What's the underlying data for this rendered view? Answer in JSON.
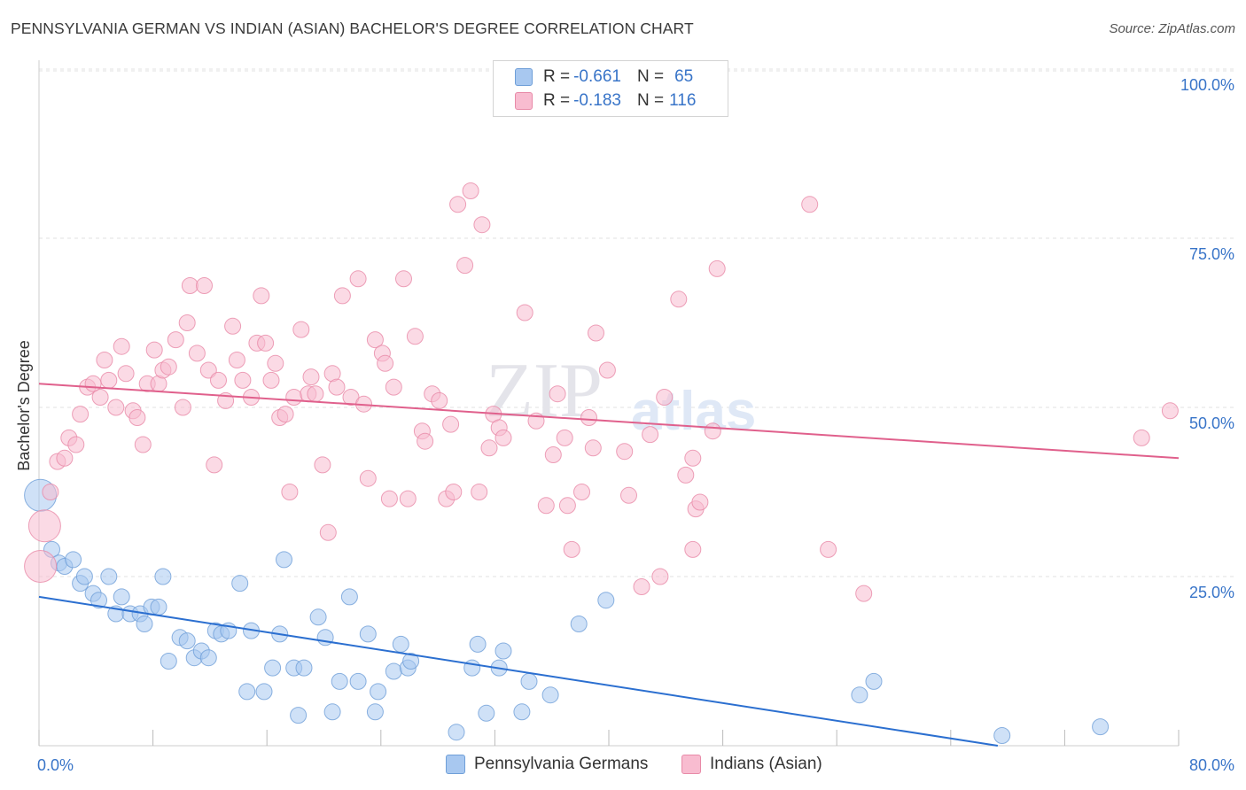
{
  "header": {
    "title": "PENNSYLVANIA GERMAN VS INDIAN (ASIAN) BACHELOR'S DEGREE CORRELATION CHART",
    "source": "Source: ZipAtlas.com"
  },
  "watermark": {
    "zip": "ZIP",
    "atlas": "atlas"
  },
  "legend": {
    "rows": [
      {
        "r_label": "R =",
        "r_value": "-0.661",
        "n_label": "N =",
        "n_value": "65",
        "color": "#a8c8f0",
        "border": "#6f9fd8"
      },
      {
        "r_label": "R =",
        "r_value": "-0.183",
        "n_label": "N =",
        "n_value": "116",
        "color": "#f8bcd0",
        "border": "#e88aa8"
      }
    ]
  },
  "bottom_legend": {
    "items": [
      {
        "label": "Pennsylvania Germans",
        "color": "#a8c8f0",
        "border": "#6f9fd8"
      },
      {
        "label": "Indians (Asian)",
        "color": "#f8bcd0",
        "border": "#e88aa8"
      }
    ]
  },
  "chart_data": {
    "type": "scatter",
    "title": "PENNSYLVANIA GERMAN VS INDIAN (ASIAN) BACHELOR'S DEGREE CORRELATION CHART",
    "xlabel": "",
    "ylabel": "Bachelor's Degree",
    "xlim": [
      0,
      80
    ],
    "ylim": [
      0,
      100
    ],
    "x_tick_labels": [
      "0.0%",
      "80.0%"
    ],
    "y_ticks": [
      25,
      50,
      75,
      100
    ],
    "y_tick_labels": [
      "25.0%",
      "50.0%",
      "75.0%",
      "100.0%"
    ],
    "grid": true,
    "legend_position": "top-center",
    "series": [
      {
        "name": "Pennsylvania Germans",
        "color": "#a8c8f0",
        "stroke": "#6f9fd8",
        "line_color": "#2b6fd0",
        "trend": {
          "x0": 0,
          "y0": 22.0,
          "x1": 67.3,
          "y1": 0
        },
        "points": [
          [
            0.1,
            37.0
          ],
          [
            0.9,
            29.0
          ],
          [
            1.4,
            27.0
          ],
          [
            1.8,
            26.5
          ],
          [
            2.4,
            27.5
          ],
          [
            2.9,
            24.0
          ],
          [
            3.2,
            25.0
          ],
          [
            3.8,
            22.5
          ],
          [
            4.2,
            21.5
          ],
          [
            4.9,
            25.0
          ],
          [
            5.4,
            19.5
          ],
          [
            5.8,
            22.0
          ],
          [
            6.4,
            19.5
          ],
          [
            7.1,
            19.5
          ],
          [
            7.4,
            18.0
          ],
          [
            7.9,
            20.5
          ],
          [
            8.4,
            20.5
          ],
          [
            8.7,
            25.0
          ],
          [
            9.1,
            12.5
          ],
          [
            9.9,
            16.0
          ],
          [
            10.4,
            15.5
          ],
          [
            10.9,
            13.0
          ],
          [
            11.4,
            14.0
          ],
          [
            11.9,
            13.0
          ],
          [
            12.4,
            17.0
          ],
          [
            12.8,
            16.5
          ],
          [
            13.3,
            17.0
          ],
          [
            14.1,
            24.0
          ],
          [
            14.6,
            8.0
          ],
          [
            14.9,
            17.0
          ],
          [
            15.8,
            8.0
          ],
          [
            16.4,
            11.5
          ],
          [
            16.9,
            16.5
          ],
          [
            17.2,
            27.5
          ],
          [
            17.9,
            11.5
          ],
          [
            18.2,
            4.5
          ],
          [
            18.6,
            11.5
          ],
          [
            19.6,
            19.0
          ],
          [
            20.1,
            16.0
          ],
          [
            20.6,
            5.0
          ],
          [
            21.1,
            9.5
          ],
          [
            21.8,
            22.0
          ],
          [
            22.4,
            9.5
          ],
          [
            23.1,
            16.5
          ],
          [
            23.6,
            5.0
          ],
          [
            23.8,
            8.0
          ],
          [
            24.9,
            11.0
          ],
          [
            25.4,
            15.0
          ],
          [
            25.9,
            11.5
          ],
          [
            26.1,
            12.5
          ],
          [
            29.3,
            2.0
          ],
          [
            30.4,
            11.5
          ],
          [
            30.8,
            15.0
          ],
          [
            31.4,
            4.8
          ],
          [
            32.3,
            11.5
          ],
          [
            32.6,
            14.0
          ],
          [
            33.9,
            5.0
          ],
          [
            34.4,
            9.5
          ],
          [
            35.9,
            7.5
          ],
          [
            37.9,
            18.0
          ],
          [
            39.8,
            21.5
          ],
          [
            57.6,
            7.5
          ],
          [
            58.6,
            9.5
          ],
          [
            67.6,
            1.5
          ],
          [
            74.5,
            2.8
          ]
        ]
      },
      {
        "name": "Indians (Asian)",
        "color": "#f8bcd0",
        "stroke": "#e88aa8",
        "line_color": "#e0608c",
        "trend": {
          "x0": 0,
          "y0": 53.5,
          "x1": 80,
          "y1": 42.5
        },
        "points": [
          [
            0.1,
            26.5
          ],
          [
            0.4,
            32.5
          ],
          [
            0.8,
            37.5
          ],
          [
            1.3,
            42.0
          ],
          [
            1.8,
            42.5
          ],
          [
            2.1,
            45.5
          ],
          [
            2.6,
            44.5
          ],
          [
            2.9,
            49.0
          ],
          [
            3.4,
            53.0
          ],
          [
            3.8,
            53.5
          ],
          [
            4.3,
            51.5
          ],
          [
            4.6,
            57.0
          ],
          [
            4.9,
            54.0
          ],
          [
            5.4,
            50.0
          ],
          [
            5.8,
            59.0
          ],
          [
            6.1,
            55.0
          ],
          [
            6.6,
            49.5
          ],
          [
            6.9,
            48.5
          ],
          [
            7.3,
            44.5
          ],
          [
            7.6,
            53.5
          ],
          [
            8.1,
            58.5
          ],
          [
            8.4,
            53.5
          ],
          [
            8.7,
            55.5
          ],
          [
            9.1,
            56.0
          ],
          [
            9.6,
            60.0
          ],
          [
            10.1,
            50.0
          ],
          [
            10.4,
            62.5
          ],
          [
            10.6,
            68.0
          ],
          [
            11.1,
            58.0
          ],
          [
            11.6,
            68.0
          ],
          [
            11.9,
            55.5
          ],
          [
            12.3,
            41.5
          ],
          [
            12.6,
            54.0
          ],
          [
            13.1,
            51.0
          ],
          [
            13.6,
            62.0
          ],
          [
            13.9,
            57.0
          ],
          [
            14.3,
            54.0
          ],
          [
            14.9,
            51.5
          ],
          [
            15.3,
            59.5
          ],
          [
            15.6,
            66.5
          ],
          [
            15.9,
            59.5
          ],
          [
            16.3,
            54.0
          ],
          [
            16.6,
            56.5
          ],
          [
            16.9,
            48.5
          ],
          [
            17.3,
            49.0
          ],
          [
            17.6,
            37.5
          ],
          [
            17.9,
            51.5
          ],
          [
            18.4,
            61.5
          ],
          [
            18.9,
            52.0
          ],
          [
            19.1,
            54.5
          ],
          [
            19.4,
            52.0
          ],
          [
            19.9,
            41.5
          ],
          [
            20.3,
            31.5
          ],
          [
            20.6,
            55.0
          ],
          [
            20.9,
            53.0
          ],
          [
            21.3,
            66.5
          ],
          [
            21.9,
            51.5
          ],
          [
            22.4,
            69.0
          ],
          [
            22.8,
            50.5
          ],
          [
            23.1,
            39.5
          ],
          [
            23.6,
            60.0
          ],
          [
            24.1,
            58.0
          ],
          [
            24.3,
            56.5
          ],
          [
            24.6,
            36.5
          ],
          [
            24.9,
            53.0
          ],
          [
            25.6,
            69.0
          ],
          [
            25.9,
            36.5
          ],
          [
            26.4,
            60.5
          ],
          [
            26.9,
            46.5
          ],
          [
            27.1,
            45.0
          ],
          [
            27.6,
            52.0
          ],
          [
            28.1,
            51.0
          ],
          [
            28.6,
            36.5
          ],
          [
            28.9,
            47.5
          ],
          [
            29.1,
            37.5
          ],
          [
            29.4,
            80.0
          ],
          [
            29.9,
            71.0
          ],
          [
            30.3,
            82.0
          ],
          [
            30.9,
            37.5
          ],
          [
            31.1,
            77.0
          ],
          [
            31.6,
            44.0
          ],
          [
            31.9,
            49.0
          ],
          [
            32.3,
            47.0
          ],
          [
            32.6,
            45.5
          ],
          [
            34.1,
            64.0
          ],
          [
            34.9,
            48.0
          ],
          [
            35.6,
            35.5
          ],
          [
            36.1,
            43.0
          ],
          [
            36.4,
            52.0
          ],
          [
            36.9,
            45.5
          ],
          [
            37.1,
            35.5
          ],
          [
            38.1,
            37.5
          ],
          [
            38.6,
            48.5
          ],
          [
            38.9,
            44.0
          ],
          [
            39.1,
            61.0
          ],
          [
            39.9,
            55.5
          ],
          [
            41.1,
            43.5
          ],
          [
            41.4,
            37.0
          ],
          [
            42.3,
            23.5
          ],
          [
            42.9,
            46.0
          ],
          [
            43.6,
            25.0
          ],
          [
            43.9,
            51.5
          ],
          [
            44.9,
            66.0
          ],
          [
            45.4,
            40.0
          ],
          [
            45.9,
            42.5
          ],
          [
            46.1,
            35.0
          ],
          [
            46.4,
            36.0
          ],
          [
            47.3,
            46.5
          ],
          [
            47.6,
            70.5
          ],
          [
            54.1,
            80.0
          ],
          [
            55.4,
            29.0
          ],
          [
            57.9,
            22.5
          ],
          [
            37.4,
            29.0
          ],
          [
            45.9,
            29.0
          ],
          [
            77.4,
            45.5
          ],
          [
            79.4,
            49.5
          ]
        ]
      }
    ]
  }
}
